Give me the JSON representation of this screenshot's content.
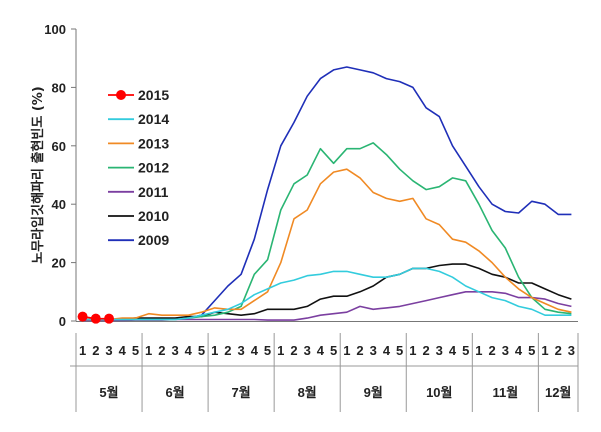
{
  "chart_data": {
    "type": "line",
    "ylabel": "노무라입깃해파리 출현빈도 (%)",
    "ylim": [
      0,
      100
    ],
    "yticks": [
      0,
      20,
      40,
      60,
      80,
      100
    ],
    "week_labels": [
      "1",
      "2",
      "3",
      "4",
      "5",
      "1",
      "2",
      "3",
      "4",
      "5",
      "1",
      "2",
      "3",
      "4",
      "5",
      "1",
      "2",
      "3",
      "4",
      "5",
      "1",
      "2",
      "3",
      "4",
      "5",
      "1",
      "2",
      "3",
      "4",
      "5",
      "1",
      "2",
      "3",
      "4",
      "5",
      "1",
      "2",
      "3"
    ],
    "month_labels": [
      "5월",
      "6월",
      "7월",
      "8월",
      "9월",
      "10월",
      "11월",
      "12월"
    ],
    "grid": false,
    "legend_position": "left",
    "series": [
      {
        "name": "2015",
        "color": "#ff0000",
        "marker": "circle",
        "values": [
          1.5,
          0.8,
          0.8
        ]
      },
      {
        "name": "2014",
        "color": "#33ccdd",
        "values": [
          0.5,
          0.5,
          0.5,
          0.5,
          0.5,
          0.5,
          0.5,
          0.5,
          1,
          2,
          3,
          4,
          6,
          9,
          11,
          13,
          14,
          15.5,
          16,
          17,
          17,
          16,
          15,
          15,
          16,
          18,
          18,
          17,
          15,
          12,
          10,
          8,
          7,
          5,
          4,
          2,
          2,
          2
        ]
      },
      {
        "name": "2013",
        "color": "#f08a24",
        "values": [
          0.5,
          0.5,
          0.5,
          1,
          1,
          2.5,
          2,
          2,
          2,
          3,
          4.5,
          4,
          4,
          7,
          10,
          20,
          35,
          38,
          47,
          51,
          52,
          49,
          44,
          42,
          41,
          42,
          35,
          33,
          28,
          27,
          24,
          20,
          15,
          11,
          8,
          6,
          4,
          3
        ]
      },
      {
        "name": "2012",
        "color": "#2ab573",
        "values": [
          0.5,
          0.5,
          0.5,
          0.5,
          0.5,
          0.5,
          0.5,
          0.5,
          1,
          1.5,
          2,
          3,
          5,
          16,
          21,
          38,
          47,
          50,
          59,
          54,
          59,
          59,
          61,
          57,
          52,
          48,
          45,
          46,
          49,
          48,
          40,
          31,
          25,
          15,
          8,
          4,
          3,
          2.5
        ]
      },
      {
        "name": "2011",
        "color": "#7b3fa0",
        "values": [
          0.2,
          0.2,
          0.2,
          0.2,
          0.3,
          0.3,
          0.3,
          0.5,
          0.5,
          0.5,
          0.5,
          0.5,
          0.5,
          0.5,
          0.3,
          0.3,
          0.3,
          1,
          2,
          2.5,
          3,
          5,
          4,
          4.5,
          5,
          6,
          7,
          8,
          9,
          10,
          10,
          10,
          9.5,
          8,
          8,
          7.5,
          6,
          5
        ]
      },
      {
        "name": "2010",
        "color": "#111111",
        "values": [
          0.5,
          0.5,
          0.5,
          0.5,
          1,
          1,
          1,
          1,
          1.5,
          1.5,
          3,
          2.5,
          2,
          2.5,
          4,
          4,
          4,
          5,
          7.5,
          8.5,
          8.5,
          10,
          12,
          15,
          16,
          18,
          18,
          19,
          19.5,
          19.5,
          18,
          16,
          15,
          13,
          13,
          11,
          9,
          7.5
        ]
      },
      {
        "name": "2009",
        "color": "#1f2fb8",
        "values": [
          0.5,
          0.5,
          0.5,
          0.5,
          0.5,
          0.5,
          0.5,
          0.5,
          1,
          2,
          7,
          12,
          16,
          28,
          45,
          60,
          68,
          77,
          83,
          86,
          87,
          86,
          85,
          83,
          82,
          80,
          73,
          70,
          60,
          53,
          46,
          40,
          37.5,
          37,
          41,
          40,
          36.5,
          36.5
        ]
      }
    ]
  }
}
